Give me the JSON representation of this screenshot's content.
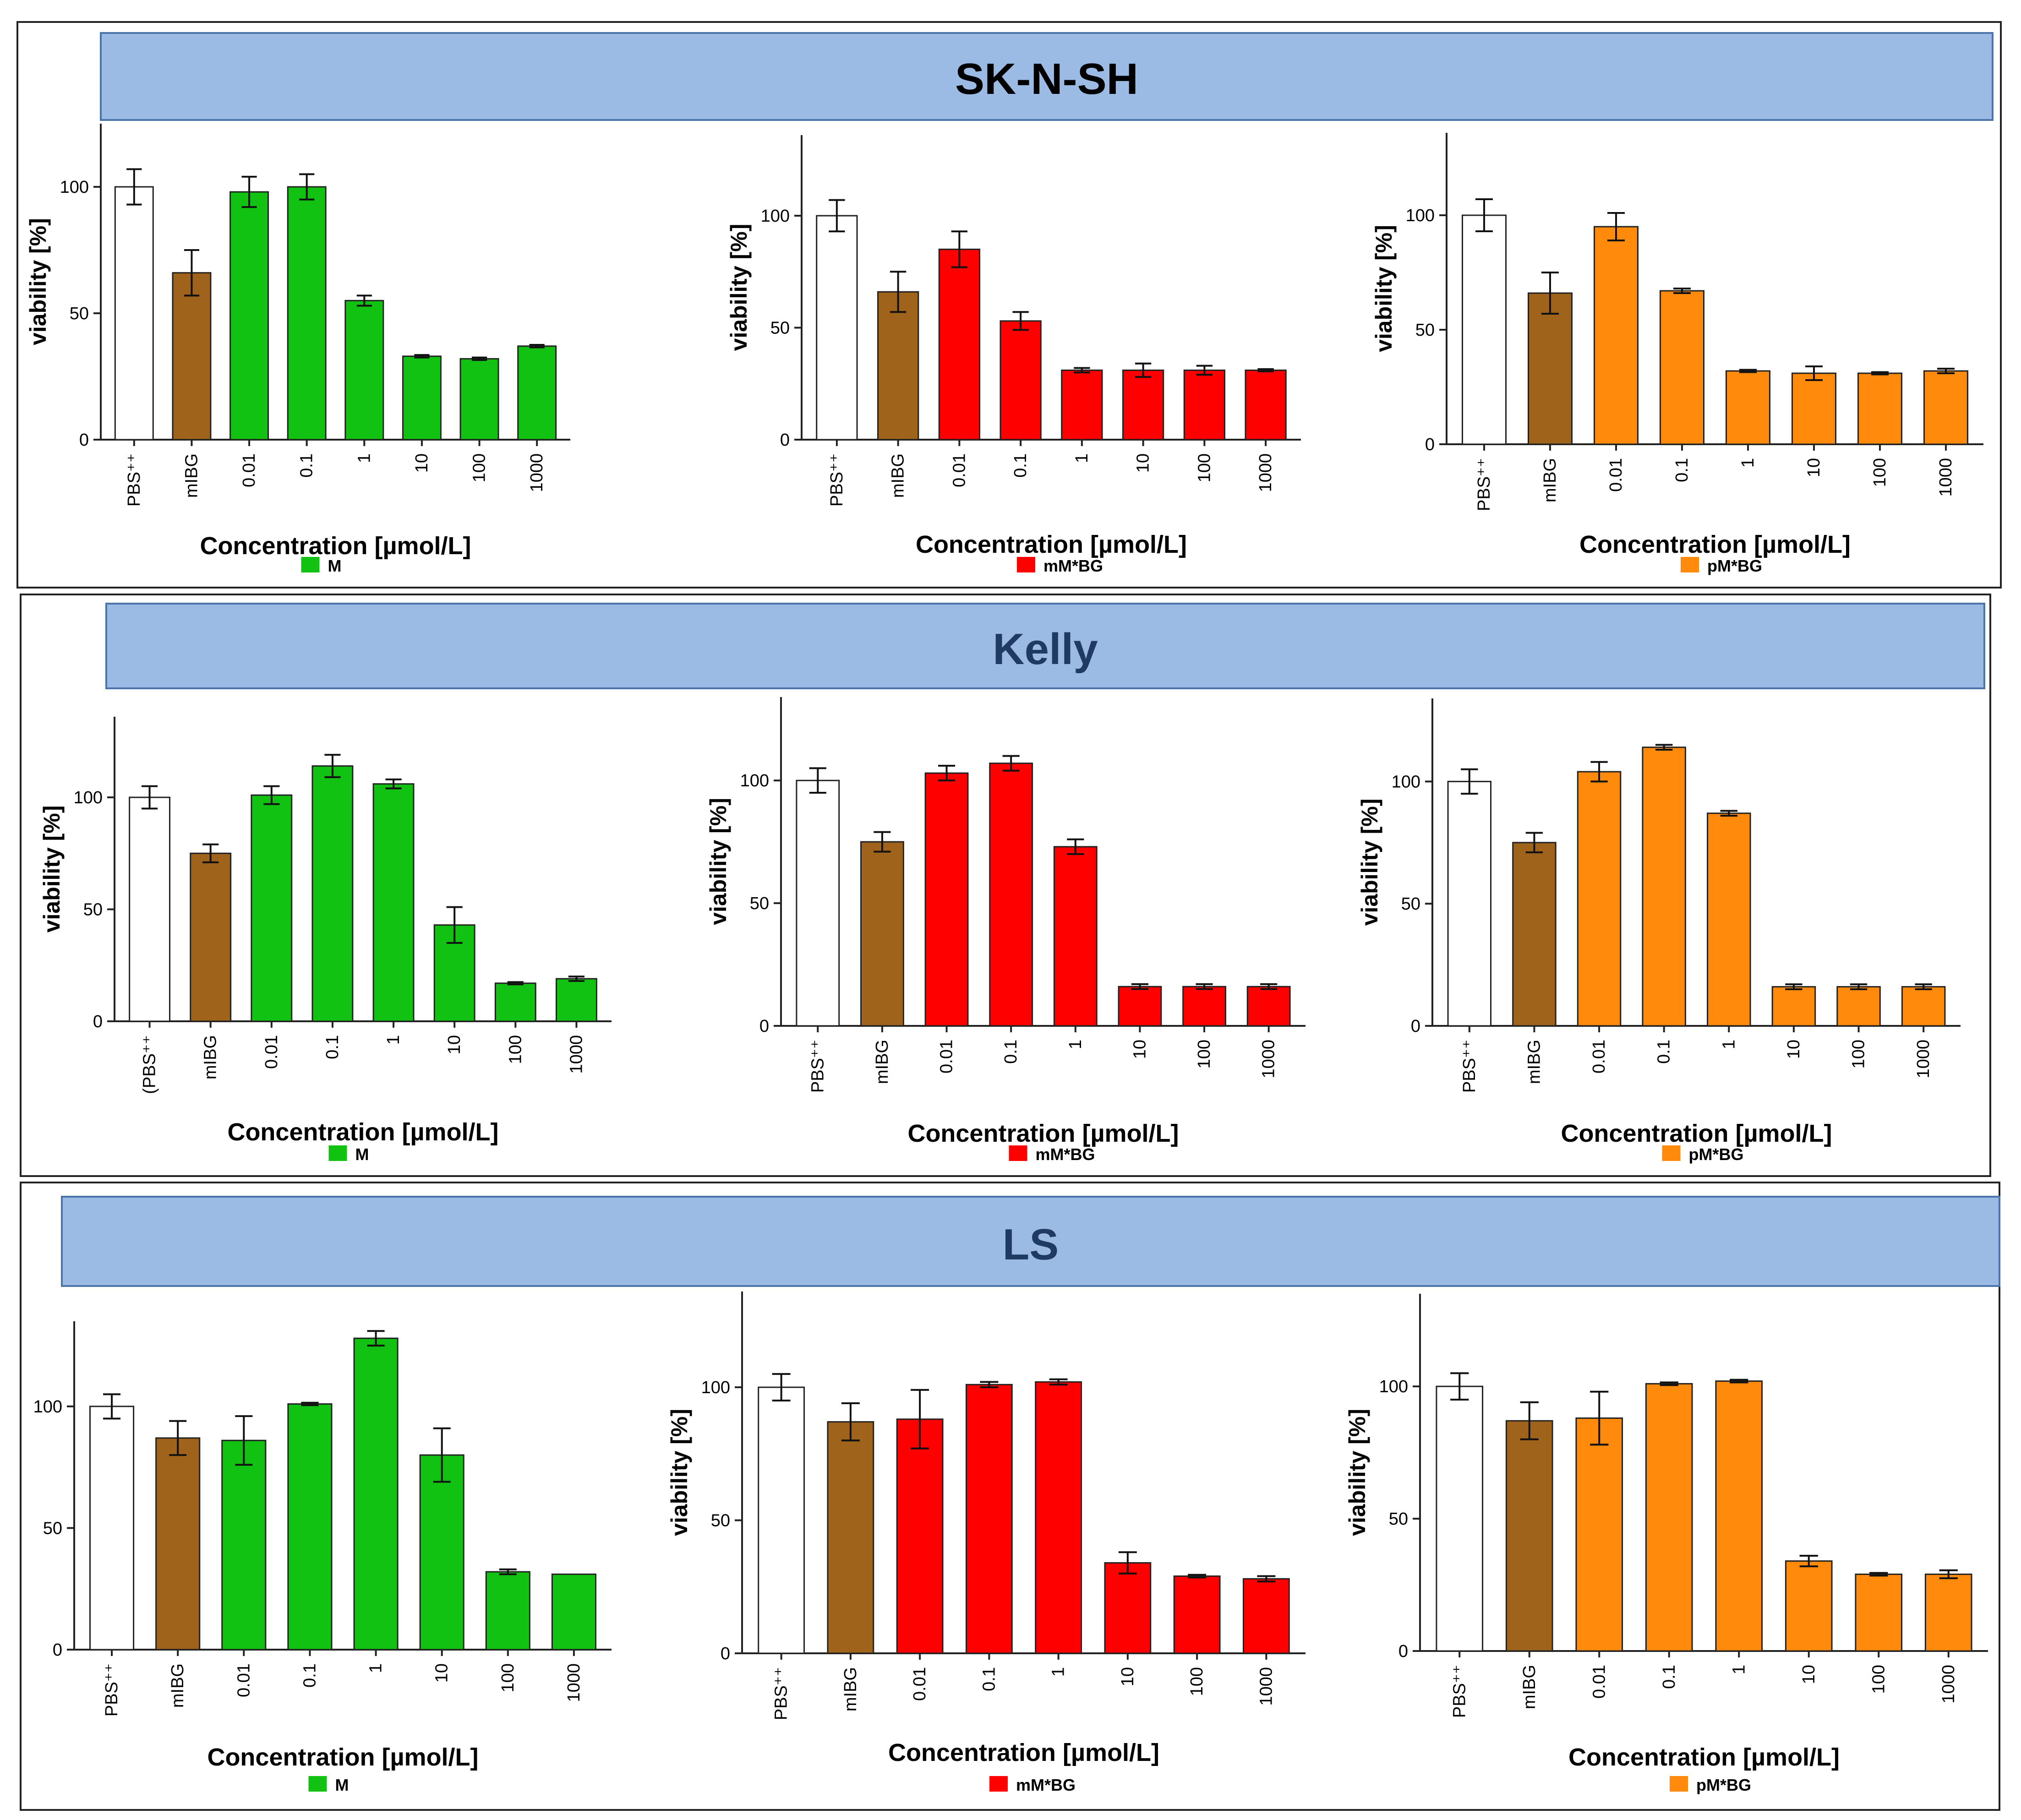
{
  "colors": {
    "pbs": "#ffffff",
    "mibg": "#a0631c",
    "green": "#12c212",
    "red": "#ff0000",
    "orange": "#ff8a0c",
    "banner": "#9bbbe4",
    "title_dark": "#000000",
    "title_blue": "#1f3b63"
  },
  "panels": [
    {
      "title": "SK-N-SH",
      "title_color": "#000000"
    },
    {
      "title": "Kelly",
      "title_color": "#1f3b63"
    },
    {
      "title": "LS",
      "title_color": "#1f3b63"
    }
  ],
  "chart_data": [
    {
      "id": "sknsh-m",
      "type": "bar",
      "panel": "SK-N-SH",
      "series": "M",
      "legend_label": "M",
      "color_key": "green",
      "categories": [
        "PBS⁺⁺",
        "mIBG",
        "0.01",
        "0.1",
        "1",
        "10",
        "100",
        "1000"
      ],
      "values": [
        100,
        66,
        98,
        100,
        55,
        33,
        32,
        37
      ],
      "errors": [
        7,
        9,
        6,
        5,
        2,
        0.5,
        0.5,
        0.5
      ],
      "xlabel": "Concentration [µmol/L]",
      "ylabel": "viability [%]",
      "ylim": [
        0,
        125
      ],
      "yticks": [
        "0",
        "50",
        "100"
      ]
    },
    {
      "id": "sknsh-mm",
      "type": "bar",
      "panel": "SK-N-SH",
      "series": "mM*BG",
      "legend_label": "mM*BG",
      "color_key": "red",
      "categories": [
        "PBS⁺⁺",
        "mIBG",
        "0.01",
        "0.1",
        "1",
        "10",
        "100",
        "1000"
      ],
      "values": [
        100,
        66,
        85,
        53,
        31,
        31,
        31,
        31
      ],
      "errors": [
        7,
        9,
        8,
        4,
        1,
        3,
        2,
        0.5
      ],
      "xlabel": "Concentration [µmol/L]",
      "ylabel": "viability [%]",
      "ylim": [
        0,
        136
      ],
      "yticks": [
        "0",
        "50",
        "100"
      ]
    },
    {
      "id": "sknsh-pm",
      "type": "bar",
      "panel": "SK-N-SH",
      "series": "pM*BG",
      "legend_label": "pM*BG",
      "color_key": "orange",
      "categories": [
        "PBS⁺⁺",
        "mIBG",
        "0.01",
        "0.1",
        "1",
        "10",
        "100",
        "1000"
      ],
      "values": [
        100,
        66,
        95,
        67,
        32,
        31,
        31,
        32
      ],
      "errors": [
        7,
        9,
        6,
        1,
        0.5,
        3,
        0.5,
        1
      ],
      "xlabel": "Concentration [µmol/L]",
      "ylabel": "viability [%]",
      "ylim": [
        0,
        136
      ],
      "yticks": [
        "0",
        "50",
        "100"
      ]
    },
    {
      "id": "kelly-m",
      "type": "bar",
      "panel": "Kelly",
      "series": "M",
      "legend_label": "M",
      "color_key": "green",
      "categories": [
        "(PBS⁺⁺",
        "mIBG",
        "0.01",
        "0.1",
        "1",
        "10",
        "100",
        "1000"
      ],
      "values": [
        100,
        75,
        101,
        114,
        106,
        43,
        17,
        19
      ],
      "errors": [
        5,
        4,
        4,
        5,
        2,
        8,
        0.5,
        1
      ],
      "xlabel": "Concentration [µmol/L]",
      "ylabel": "viability [%]",
      "ylim": [
        0,
        136
      ],
      "yticks": [
        "0",
        "50",
        "100"
      ]
    },
    {
      "id": "kelly-mm",
      "type": "bar",
      "panel": "Kelly",
      "series": "mM*BG",
      "legend_label": "mM*BG",
      "color_key": "red",
      "categories": [
        "PBS⁺⁺",
        "mIBG",
        "0.01",
        "0.1",
        "1",
        "10",
        "100",
        "1000"
      ],
      "values": [
        100,
        75,
        103,
        107,
        73,
        16,
        16,
        16
      ],
      "errors": [
        5,
        4,
        3,
        3,
        3,
        1,
        1,
        1
      ],
      "xlabel": "Concentration [µmol/L]",
      "ylabel": "viability [%]",
      "ylim": [
        0,
        134
      ],
      "yticks": [
        "0",
        "50",
        "100"
      ]
    },
    {
      "id": "kelly-pm",
      "type": "bar",
      "panel": "Kelly",
      "series": "pM*BG",
      "legend_label": "pM*BG",
      "color_key": "orange",
      "categories": [
        "PBS⁺⁺",
        "mIBG",
        "0.01",
        "0.1",
        "1",
        "10",
        "100",
        "1000"
      ],
      "values": [
        100,
        75,
        104,
        114,
        87,
        16,
        16,
        16
      ],
      "errors": [
        5,
        4,
        4,
        1,
        1,
        1,
        1,
        1
      ],
      "xlabel": "Concentration [µmol/L]",
      "ylabel": "viability [%]",
      "ylim": [
        0,
        134
      ],
      "yticks": [
        "0",
        "50",
        "100"
      ]
    },
    {
      "id": "ls-m",
      "type": "bar",
      "panel": "LS",
      "series": "M",
      "legend_label": "M",
      "color_key": "green",
      "categories": [
        "PBS⁺⁺",
        "mIBG",
        "0.01",
        "0.1",
        "1",
        "10",
        "100",
        "1000"
      ],
      "values": [
        100,
        87,
        86,
        101,
        128,
        80,
        32,
        31
      ],
      "errors": [
        5,
        7,
        10,
        0.5,
        3,
        11,
        1,
        0
      ],
      "xlabel": "Concentration [µmol/L]",
      "ylabel": "",
      "ylim": [
        0,
        135
      ],
      "yticks": [
        "0",
        "50",
        "100"
      ]
    },
    {
      "id": "ls-mm",
      "type": "bar",
      "panel": "LS",
      "series": "mM*BG",
      "legend_label": "mM*BG",
      "color_key": "red",
      "categories": [
        "PBS⁺⁺",
        "mIBG",
        "0.01",
        "0.1",
        "1",
        "10",
        "100",
        "1000"
      ],
      "values": [
        100,
        87,
        88,
        101,
        102,
        34,
        29,
        28
      ],
      "errors": [
        5,
        7,
        11,
        1,
        1,
        4,
        0.5,
        1
      ],
      "xlabel": "Concentration [µmol/L]",
      "ylabel": "viability [%]",
      "ylim": [
        0,
        136
      ],
      "yticks": [
        "0",
        "50",
        "100"
      ]
    },
    {
      "id": "ls-pm",
      "type": "bar",
      "panel": "LS",
      "series": "pM*BG",
      "legend_label": "pM*BG",
      "color_key": "orange",
      "categories": [
        "PBS⁺⁺",
        "mIBG",
        "0.01",
        "0.1",
        "1",
        "10",
        "100",
        "1000"
      ],
      "values": [
        100,
        87,
        88,
        101,
        102,
        34,
        29,
        29
      ],
      "errors": [
        5,
        7,
        10,
        0.5,
        0.5,
        2,
        0.5,
        1.5
      ],
      "xlabel": "Concentration [µmol/L]",
      "ylabel": "viability [%]",
      "ylim": [
        0,
        135
      ],
      "yticks": [
        "0",
        "50",
        "100"
      ]
    }
  ]
}
